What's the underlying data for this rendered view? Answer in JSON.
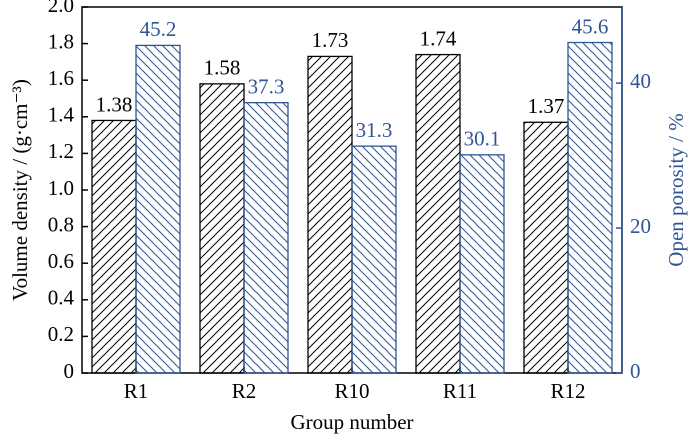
{
  "chart_data": {
    "type": "bar",
    "x_label": "Group number",
    "y_label": "Volume density / (g·cm⁻³)",
    "y2_label": "Open porosity / %",
    "categories": [
      "R1",
      "R2",
      "R10",
      "R11",
      "R12"
    ],
    "series": [
      {
        "color": "#000000",
        "hatch": "/",
        "values": [
          1.38,
          1.58,
          1.73,
          1.74,
          1.37
        ]
      },
      {
        "color": "#2e5597",
        "hatch": "\\",
        "axis": "y2",
        "values": [
          45.2,
          37.3,
          31.3,
          30.1,
          45.6
        ]
      }
    ],
    "ylim": [
      0,
      2.0
    ],
    "yticks": [
      0,
      0.2,
      0.4,
      0.6,
      0.8,
      {
        "value": 1,
        "label": "1.0"
      },
      1.2,
      1.4,
      1.6,
      1.8,
      {
        "value": 2,
        "label": "2.0"
      }
    ],
    "y2lim": [
      0,
      50.5
    ],
    "y2ticks": [
      0,
      20,
      40
    ],
    "y2_color": "#2e5597",
    "grid": false
  }
}
